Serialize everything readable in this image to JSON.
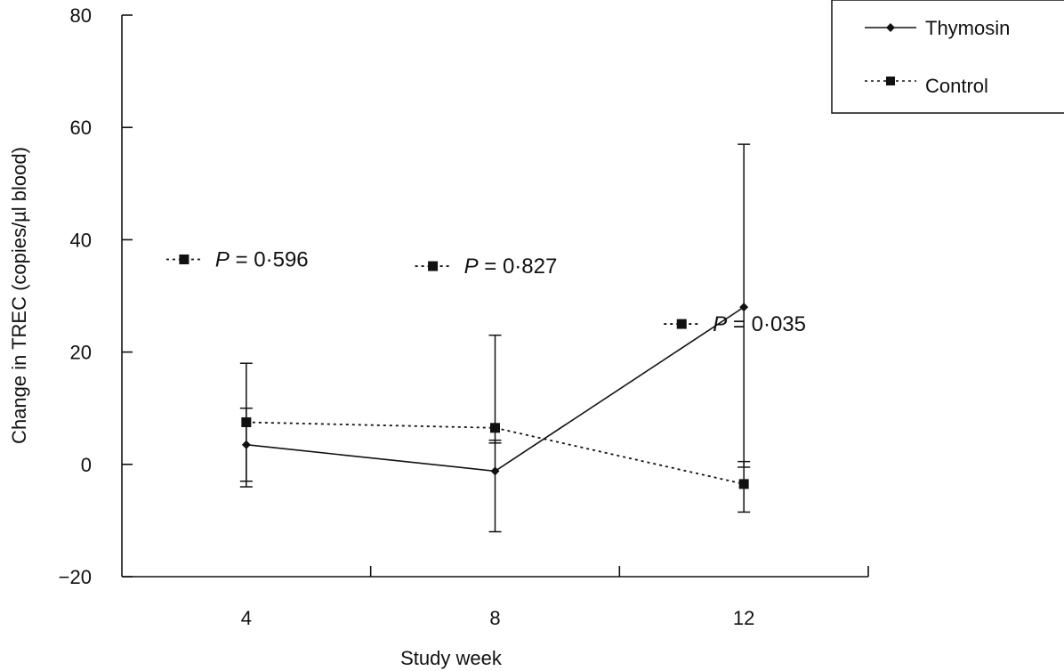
{
  "chart_data": {
    "type": "line",
    "title": "",
    "xlabel": "Study week",
    "ylabel": "Change in TREC (copies/µl blood)",
    "ylim": [
      -20,
      80
    ],
    "xlim": [
      2,
      14
    ],
    "yticks": [
      -20,
      0,
      20,
      40,
      60,
      80
    ],
    "ytick_labels": [
      "−20",
      "0",
      "20",
      "40",
      "60",
      "80"
    ],
    "xticks": [
      4,
      8,
      12
    ],
    "xtick_labels": [
      "4",
      "8",
      "12"
    ],
    "x_minor_ticks": [
      6,
      10
    ],
    "grid": false,
    "legend_position": "top-right",
    "series": [
      {
        "name": "Thymosin",
        "style": "solid",
        "marker": "diamond",
        "x": [
          4,
          8,
          12
        ],
        "y": [
          3.5,
          -1.2,
          28
        ],
        "err_low": [
          -4,
          -12,
          -0.5
        ],
        "err_high": [
          18,
          23,
          57
        ]
      },
      {
        "name": "Control",
        "style": "dotted",
        "marker": "square",
        "x": [
          4,
          8,
          12
        ],
        "y": [
          7.5,
          6.5,
          -3.5
        ],
        "err_low": [
          -3,
          3.8,
          -8.5
        ],
        "err_high": [
          10,
          4.3,
          0.5
        ]
      }
    ],
    "annotations": [
      {
        "marker_x": 3.0,
        "marker_y": 36.5,
        "prefix": "P",
        "text": " = 0·596"
      },
      {
        "marker_x": 7.0,
        "marker_y": 35.3,
        "prefix": "P",
        "text": " = 0·827"
      },
      {
        "marker_x": 11.0,
        "marker_y": 25.0,
        "prefix": "P",
        "text": " = 0·035"
      }
    ]
  },
  "colors": {
    "ink": "#111111",
    "background": "#ffffff"
  }
}
